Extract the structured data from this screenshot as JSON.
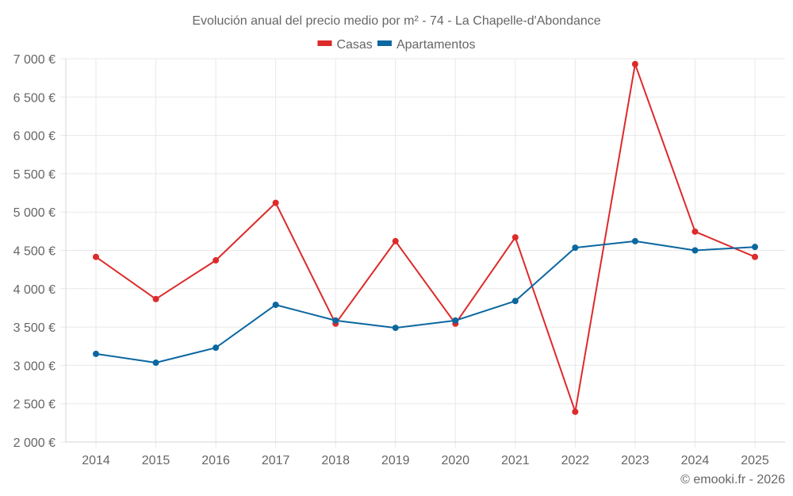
{
  "chart_data": {
    "type": "line",
    "title": "Evolución anual del precio medio por m² - 74 - La Chapelle-d'Abondance",
    "xlabel": "",
    "ylabel": "",
    "x": [
      "2014",
      "2015",
      "2016",
      "2017",
      "2018",
      "2019",
      "2020",
      "2021",
      "2022",
      "2023",
      "2024",
      "2025"
    ],
    "ylim": [
      2000,
      7000
    ],
    "yticks": [
      2000,
      2500,
      3000,
      3500,
      4000,
      4500,
      5000,
      5500,
      6000,
      6500,
      7000
    ],
    "ytick_labels": [
      "2 000 €",
      "2 500 €",
      "3 000 €",
      "3 500 €",
      "4 000 €",
      "4 500 €",
      "5 000 €",
      "5 500 €",
      "6 000 €",
      "6 500 €",
      "7 000 €"
    ],
    "grid": true,
    "legend_position": "top-center",
    "series": [
      {
        "name": "Casas",
        "color": "#dd2a2a",
        "values": [
          4415,
          3865,
          4370,
          5120,
          3545,
          4620,
          3545,
          4670,
          2395,
          6930,
          4745,
          4415
        ]
      },
      {
        "name": "Apartamentos",
        "color": "#0b67a0",
        "values": [
          3150,
          3035,
          3230,
          3790,
          3585,
          3490,
          3585,
          3840,
          4535,
          4620,
          4500,
          4545
        ]
      }
    ]
  },
  "credit": "© emooki.fr - 2026"
}
